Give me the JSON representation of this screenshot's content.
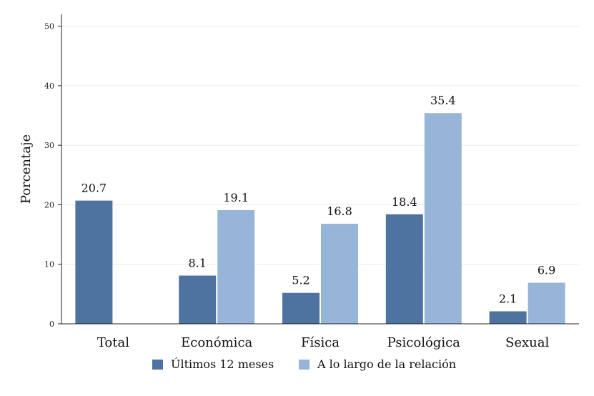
{
  "chart_data": {
    "type": "bar",
    "title": "",
    "xlabel": "",
    "ylabel": "Porcentaje",
    "ylim": [
      0,
      52
    ],
    "yticks": [
      0,
      10,
      20,
      30,
      40,
      50
    ],
    "grid": true,
    "legend_position": "bottom",
    "categories": [
      "Total",
      "Económica",
      "Física",
      "Psicológica",
      "Sexual"
    ],
    "series": [
      {
        "name": "Últimos 12 meses",
        "color": "#4f73a1",
        "values": [
          20.7,
          8.1,
          5.2,
          18.4,
          2.1
        ],
        "labels": [
          "20.7",
          "8.1",
          "5.2",
          "18.4",
          "2.1"
        ]
      },
      {
        "name": "A lo largo de la relación",
        "color": "#96b5d8",
        "values": [
          null,
          19.1,
          16.8,
          35.4,
          6.9
        ],
        "labels": [
          null,
          "19.1",
          "16.8",
          "35.4",
          "6.9"
        ]
      }
    ]
  }
}
